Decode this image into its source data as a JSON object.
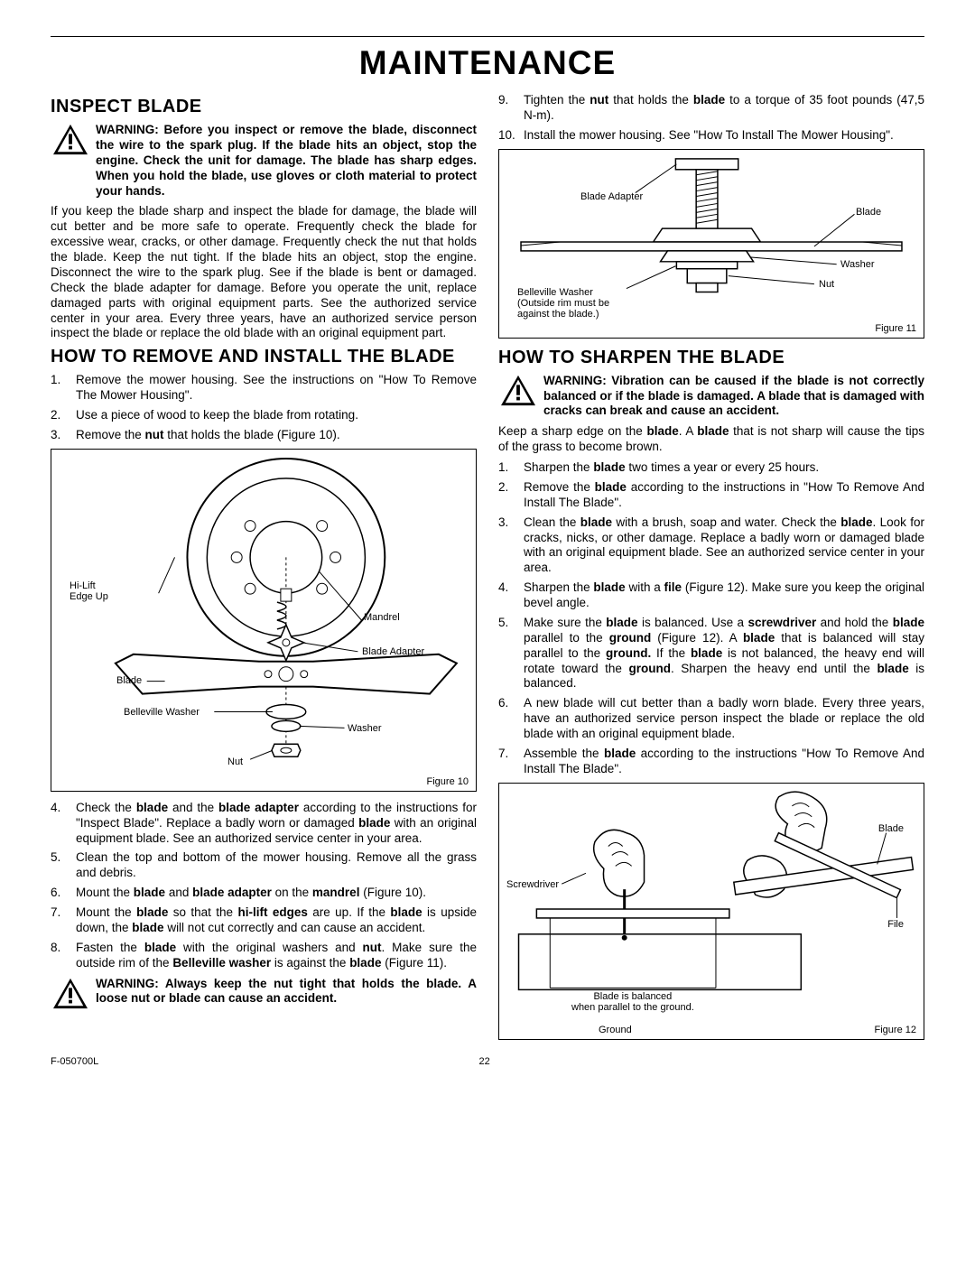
{
  "main_title": "MAINTENANCE",
  "page_number": "22",
  "doc_code": "F-050700L",
  "left": {
    "h1": "INSPECT BLADE",
    "warn1": "WARNING: Before you inspect or remove the blade, disconnect the wire to the spark plug. If the blade hits an object, stop the engine. Check the unit for damage. The blade has sharp edges. When you hold the blade, use gloves or cloth material to protect your hands.",
    "p1": "If you keep the blade sharp and inspect the blade for damage, the blade will cut better and be more safe to operate. Frequently check the blade for excessive wear, cracks, or other damage. Frequently check the nut that holds the blade. Keep the nut tight. If the blade hits an object, stop the engine. Disconnect the wire to the spark plug. See if the blade is bent or damaged. Check the blade adapter for damage. Before you operate the unit, replace damaged parts with original equipment parts. See the authorized service center in your area. Every three years, have an authorized service person inspect the blade or replace the old blade with an original equipment part.",
    "h2": "HOW TO REMOVE AND INSTALL THE BLADE",
    "ol1": [
      "Remove the mower housing. See the instructions on \"How To Remove The Mower Housing\".",
      "Use a piece of wood to keep the blade from rotating.",
      "Remove the <b>nut</b> that holds the blade (Figure 10)."
    ],
    "fig10": {
      "hi_lift": "Hi-Lift\nEdge Up",
      "mandrel": "Mandrel",
      "blade_adapter": "Blade Adapter",
      "blade": "Blade",
      "belleville": "Belleville Washer",
      "washer": "Washer",
      "nut": "Nut",
      "caption": "Figure 10"
    },
    "ol2": [
      "Check the <b>blade</b> and the <b>blade adapter</b> according to the instructions for \"Inspect Blade\". Replace a badly worn or damaged <b>blade</b> with an original equipment blade. See an authorized service center in your area.",
      "Clean the top and bottom of the mower housing. Remove all the grass and debris.",
      "Mount the <b>blade</b> and <b>blade adapter</b> on the <b>mandrel</b> (Figure 10).",
      "Mount the <b>blade</b> so that the <b>hi-lift edges</b> are up. If the <b>blade</b> is upside down, the <b>blade</b> will not cut correctly and can cause an accident.",
      "Fasten the <b>blade</b> with the original washers and <b>nut</b>. Make sure the outside rim of the <b>Belleville washer</b> is against the <b>blade</b> (Figure 11)."
    ],
    "warn2": "WARNING: Always keep the nut tight that holds the blade. A loose nut or blade can cause an accident."
  },
  "right": {
    "ol1": [
      "Tighten the <b>nut</b> that holds the <b>blade</b> to a torque of 35 foot pounds (47,5 N-m).",
      "Install the mower housing. See \"How To Install The Mower Housing\"."
    ],
    "fig11": {
      "blade_adapter": "Blade Adapter",
      "blade": "Blade",
      "washer": "Washer",
      "nut": "Nut",
      "belleville": "Belleville Washer\n(Outside rim must be\nagainst the blade.)",
      "caption": "Figure 11"
    },
    "h1": "HOW TO SHARPEN THE BLADE",
    "warn1": "WARNING: Vibration can be caused if the blade is not correctly balanced or if the blade is damaged. A blade that is damaged with cracks can break and cause an accident.",
    "p1": "Keep a sharp edge on the <b>blade</b>. A <b>blade</b> that is not sharp will cause the tips of the grass to become brown.",
    "ol2": [
      "Sharpen the <b>blade</b> two times a year or every 25 hours.",
      "Remove the <b>blade</b> according to the instructions in \"How To Remove And Install The Blade\".",
      "Clean the <b>blade</b> with a brush, soap and water. Check the <b>blade</b>. Look for cracks, nicks, or other damage. Replace a badly worn or damaged blade with an original equipment blade. See an authorized service center in your area.",
      "Sharpen the <b>blade</b> with a <b>file</b> (Figure 12). Make sure you keep the original bevel angle.",
      "Make sure the <b>blade</b> is balanced. Use a <b>screwdriver</b> and hold the <b>blade</b> parallel to the <b>ground</b> (Figure 12). A <b>blade</b> that is balanced will stay parallel to the <b>ground.</b> If the <b>blade</b> is not balanced, the heavy end will rotate toward the <b>ground</b>. Sharpen the heavy end until the <b>blade</b> is balanced.",
      "A new blade will cut better than a badly worn blade. Every three years, have an authorized service person inspect the blade or replace the old blade with an original equipment blade.",
      "Assemble the <b>blade</b> according to the instructions \"How To Remove And Install The Blade\"."
    ],
    "fig12": {
      "blade": "Blade",
      "screwdriver": "Screwdriver",
      "file": "File",
      "balanced": "Blade is balanced\nwhen parallel to the ground.",
      "ground": "Ground",
      "caption": "Figure 12"
    }
  }
}
